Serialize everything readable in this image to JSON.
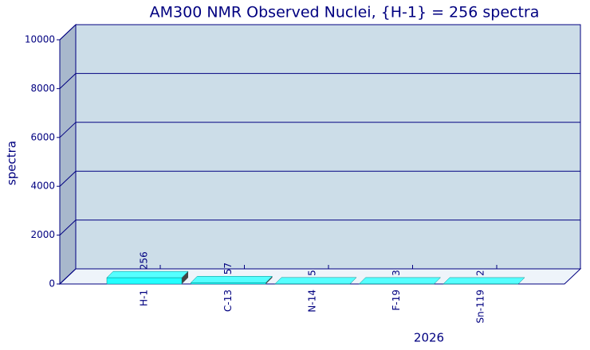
{
  "chart_data": {
    "type": "bar3d",
    "title": "AM300 NMR Observed Nuclei, {H-1} = 256 spectra",
    "y_label": "spectra",
    "x_label": "2026",
    "categories": [
      "H-1",
      "C-13",
      "N-14",
      "F-19",
      "Sn-119"
    ],
    "values": [
      256,
      57,
      5,
      3,
      2
    ],
    "color": "#22ffff",
    "ylim": [
      0,
      10000
    ],
    "yticks": [
      0,
      2000,
      4000,
      6000,
      8000,
      10000
    ],
    "grid": true
  }
}
